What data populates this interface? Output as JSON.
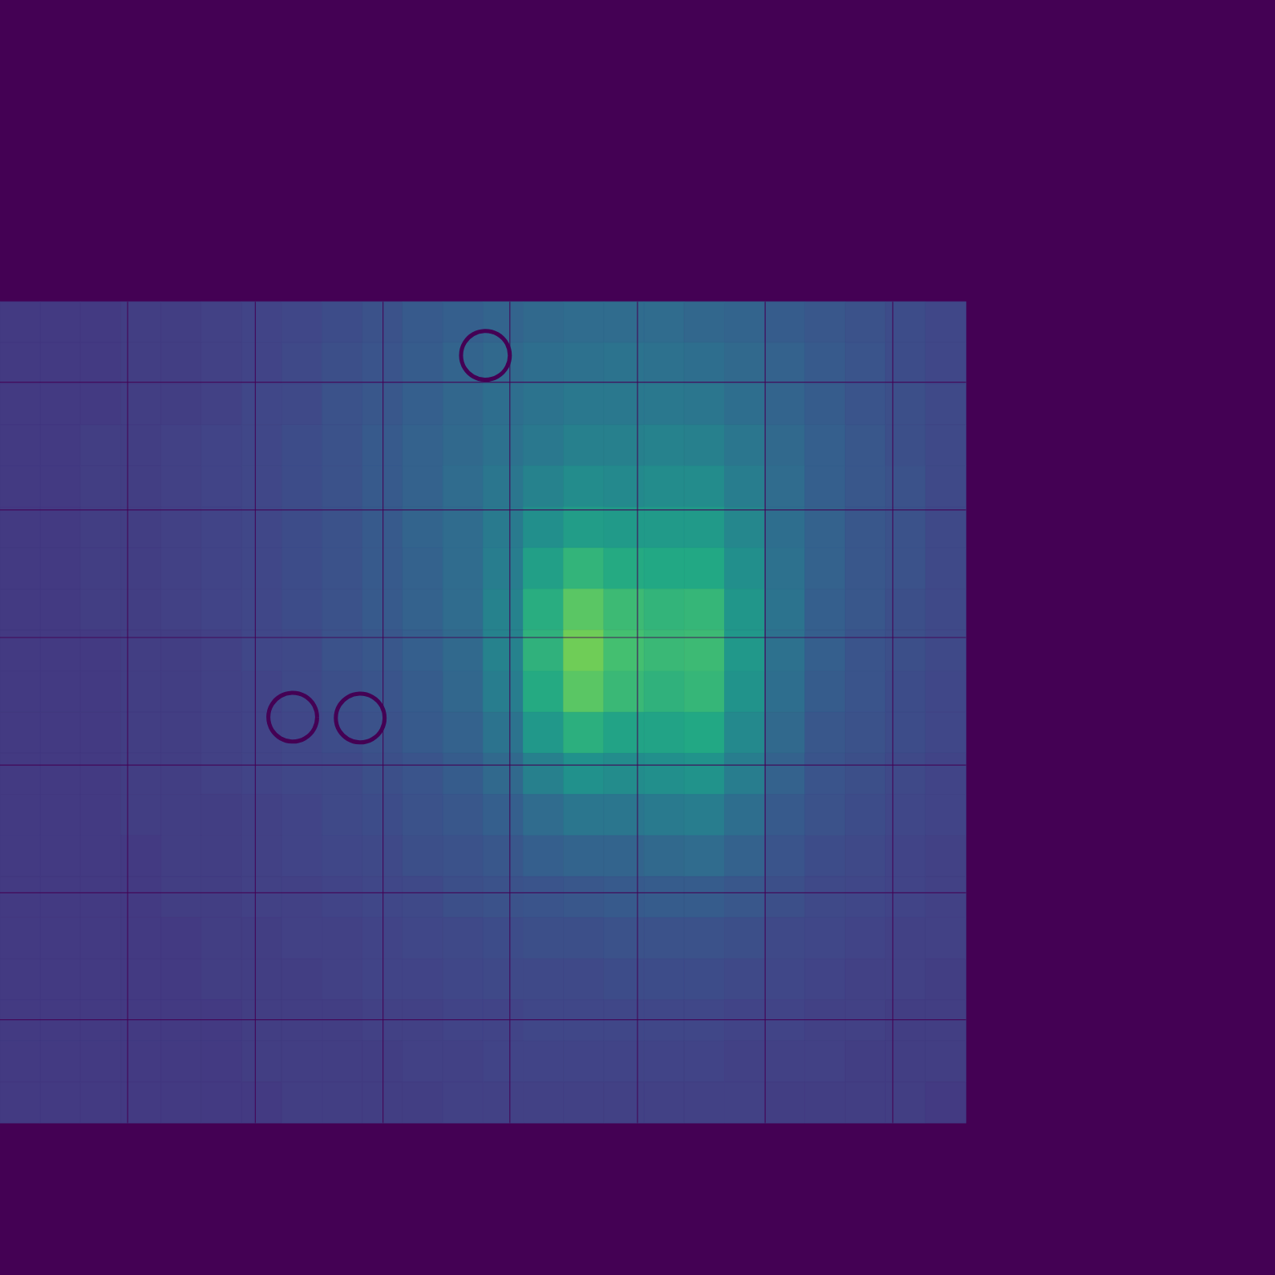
{
  "chart_data": {
    "type": "heatmap",
    "tick_labels": false,
    "grid": false,
    "xlim": [
      0,
      1568
    ],
    "ylim": [
      1568,
      0
    ],
    "zlim": [
      0,
      100
    ],
    "x": [
      24.75,
      74.25,
      123.75,
      173.25,
      222.75,
      272.25,
      321.75,
      371.25,
      420.75,
      470.25,
      519.75,
      569.25,
      618.75,
      668.25,
      717.75,
      767.25,
      816.75,
      866.25,
      915.75,
      965.25,
      1014.75,
      1064.25,
      1113.75,
      1163.25
    ],
    "y": [
      396.25,
      446.75,
      497.25,
      547.75,
      598.25,
      648.75,
      699.25,
      749.75,
      800.25,
      850.75,
      901.25,
      951.75,
      1002.25,
      1052.75,
      1103.25,
      1153.75,
      1204.25,
      1254.75,
      1305.25,
      1355.75
    ],
    "values": [
      [
        17,
        17,
        17,
        18,
        18,
        19,
        20,
        21,
        23,
        25,
        28,
        30,
        32,
        34,
        35,
        35,
        35,
        33,
        32,
        29,
        27,
        25,
        23,
        21
      ],
      [
        17,
        17,
        17,
        18,
        18,
        19,
        20,
        22,
        24,
        26,
        29,
        32,
        34,
        36,
        37,
        38,
        37,
        36,
        34,
        31,
        28,
        26,
        23,
        21
      ],
      [
        17,
        17,
        17,
        18,
        18,
        19,
        21,
        22,
        25,
        27,
        30,
        33,
        36,
        38,
        40,
        40,
        40,
        39,
        36,
        32,
        29,
        26,
        24,
        22
      ],
      [
        17,
        17,
        18,
        18,
        19,
        20,
        21,
        23,
        25,
        28,
        31,
        34,
        37,
        40,
        43,
        43,
        44,
        43,
        39,
        34,
        30,
        27,
        24,
        22
      ],
      [
        17,
        17,
        18,
        18,
        19,
        20,
        21,
        23,
        25,
        28,
        31,
        35,
        39,
        44,
        48,
        47,
        48,
        48,
        42,
        35,
        30,
        27,
        25,
        22
      ],
      [
        17,
        17,
        18,
        18,
        19,
        20,
        21,
        23,
        25,
        28,
        32,
        35,
        41,
        49,
        55,
        54,
        54,
        54,
        46,
        36,
        31,
        27,
        25,
        22
      ],
      [
        17,
        17,
        18,
        18,
        19,
        20,
        21,
        23,
        25,
        28,
        31,
        35,
        42,
        56,
        65,
        61,
        60,
        60,
        49,
        37,
        31,
        27,
        25,
        22
      ],
      [
        17,
        17,
        18,
        18,
        19,
        20,
        21,
        23,
        25,
        28,
        31,
        35,
        44,
        62,
        74,
        68,
        65,
        66,
        52,
        38,
        30,
        27,
        24,
        22
      ],
      [
        17,
        17,
        17,
        18,
        18,
        19,
        21,
        22,
        25,
        27,
        30,
        34,
        44,
        64,
        78,
        70,
        67,
        68,
        53,
        37,
        30,
        26,
        24,
        22
      ],
      [
        17,
        17,
        17,
        18,
        18,
        19,
        20,
        22,
        24,
        26,
        29,
        33,
        42,
        61,
        74,
        67,
        64,
        66,
        51,
        36,
        29,
        26,
        23,
        21
      ],
      [
        17,
        17,
        17,
        18,
        18,
        19,
        20,
        21,
        23,
        25,
        28,
        31,
        38,
        53,
        63,
        58,
        58,
        60,
        47,
        34,
        27,
        25,
        23,
        21
      ],
      [
        17,
        17,
        17,
        18,
        18,
        19,
        20,
        21,
        22,
        24,
        26,
        29,
        34,
        43,
        50,
        48,
        49,
        51,
        42,
        31,
        26,
        24,
        22,
        20
      ],
      [
        17,
        17,
        17,
        18,
        18,
        18,
        19,
        20,
        22,
        23,
        25,
        27,
        30,
        35,
        39,
        39,
        41,
        42,
        36,
        28,
        25,
        23,
        21,
        20
      ],
      [
        17,
        17,
        17,
        17,
        18,
        18,
        19,
        20,
        21,
        22,
        24,
        25,
        27,
        30,
        32,
        32,
        34,
        35,
        31,
        26,
        23,
        22,
        20,
        19
      ],
      [
        17,
        17,
        17,
        17,
        18,
        18,
        19,
        19,
        20,
        21,
        22,
        24,
        25,
        26,
        27,
        28,
        29,
        29,
        27,
        24,
        22,
        21,
        20,
        19
      ],
      [
        17,
        17,
        17,
        17,
        17,
        18,
        18,
        19,
        19,
        20,
        21,
        22,
        23,
        24,
        24,
        25,
        25,
        25,
        24,
        22,
        21,
        20,
        19,
        19
      ],
      [
        17,
        17,
        17,
        17,
        17,
        18,
        18,
        18,
        19,
        20,
        20,
        21,
        22,
        22,
        22,
        23,
        23,
        23,
        22,
        21,
        20,
        19,
        19,
        18
      ],
      [
        17,
        17,
        17,
        17,
        17,
        17,
        18,
        18,
        18,
        19,
        19,
        20,
        20,
        21,
        21,
        21,
        21,
        21,
        20,
        20,
        19,
        19,
        18,
        18
      ],
      [
        17,
        17,
        17,
        17,
        17,
        17,
        18,
        18,
        18,
        18,
        19,
        19,
        20,
        20,
        20,
        20,
        20,
        20,
        19,
        19,
        19,
        18,
        18,
        18
      ],
      [
        17,
        17,
        17,
        17,
        17,
        17,
        17,
        18,
        18,
        18,
        18,
        19,
        19,
        19,
        19,
        19,
        19,
        19,
        19,
        18,
        18,
        18,
        18,
        17
      ]
    ],
    "panel_gaps": {
      "x": [
        157,
        314,
        471,
        627,
        784,
        941,
        1098
      ],
      "y": [
        470,
        627,
        784,
        941,
        1098,
        1254
      ]
    },
    "masks": [
      {
        "x": 597,
        "y": 437,
        "r": 30
      },
      {
        "x": 360,
        "y": 882,
        "r": 30
      },
      {
        "x": 443,
        "y": 883,
        "r": 30
      }
    ]
  }
}
